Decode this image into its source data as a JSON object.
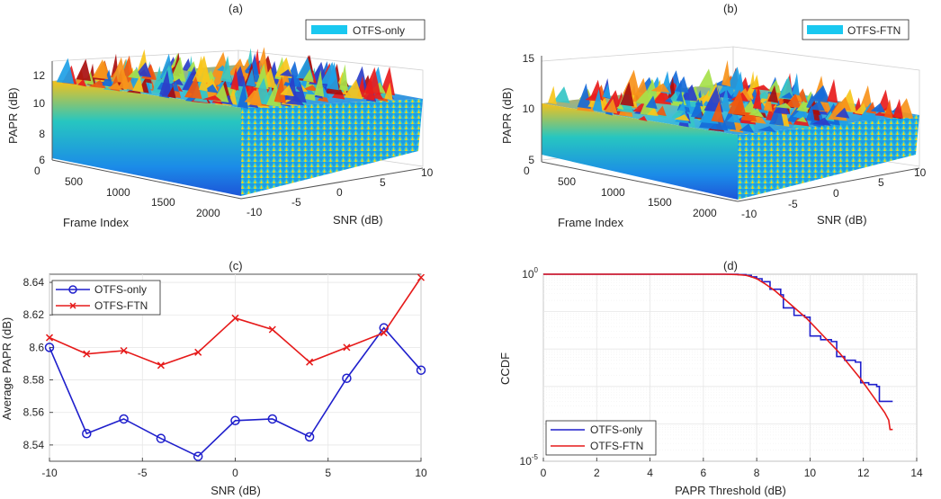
{
  "chart_data": [
    {
      "id": "a",
      "type": "surface3d",
      "title": "(a)",
      "xlabel": "Frame Index",
      "ylabel": "SNR (dB)",
      "zlabel": "PAPR (dB)",
      "x_ticks": [
        "0",
        "500",
        "1000",
        "1500",
        "2000"
      ],
      "y_ticks": [
        "-10",
        "-5",
        "0",
        "5",
        "10"
      ],
      "z_ticks": [
        "6",
        "8",
        "10",
        "12"
      ],
      "xlim": [
        0,
        2100
      ],
      "ylim": [
        -10,
        10
      ],
      "zlim": [
        6,
        13
      ],
      "legend": [
        "OTFS-only"
      ],
      "legend_color": "#19c8f0"
    },
    {
      "id": "b",
      "type": "surface3d",
      "title": "(b)",
      "xlabel": "Frame Index",
      "ylabel": "SNR (dB)",
      "zlabel": "PAPR (dB)",
      "x_ticks": [
        "0",
        "500",
        "1000",
        "1500",
        "2000"
      ],
      "y_ticks": [
        "-10",
        "-5",
        "0",
        "5",
        "10"
      ],
      "z_ticks": [
        "5",
        "10",
        "15"
      ],
      "xlim": [
        0,
        2100
      ],
      "ylim": [
        -10,
        10
      ],
      "zlim": [
        5,
        15
      ],
      "legend": [
        "OTFS-FTN"
      ],
      "legend_color": "#19c8f0"
    },
    {
      "id": "c",
      "type": "line",
      "title": "(c)",
      "xlabel": "SNR (dB)",
      "ylabel": "Average PAPR (dB)",
      "xlim": [
        -10,
        10
      ],
      "ylim": [
        8.53,
        8.645
      ],
      "x_ticks": [
        -10,
        -5,
        0,
        5,
        10
      ],
      "x_tick_labels": [
        "-10",
        "-5",
        "0",
        "5",
        "10"
      ],
      "y_ticks": [
        8.54,
        8.56,
        8.58,
        8.6,
        8.62,
        8.64
      ],
      "y_tick_labels": [
        "8.54",
        "8.56",
        "8.58",
        "8.6",
        "8.62",
        "8.64"
      ],
      "x": [
        -10,
        -8,
        -6,
        -4,
        -2,
        0,
        2,
        4,
        6,
        8,
        10
      ],
      "series": [
        {
          "name": "OTFS-only",
          "color": "#1f1fcc",
          "marker": "circle",
          "values": [
            8.6,
            8.547,
            8.556,
            8.544,
            8.533,
            8.555,
            8.556,
            8.545,
            8.581,
            8.612,
            8.586
          ]
        },
        {
          "name": "OTFS-FTN",
          "color": "#e61a1a",
          "marker": "x",
          "values": [
            8.606,
            8.596,
            8.598,
            8.589,
            8.597,
            8.618,
            8.611,
            8.591,
            8.6,
            8.609,
            8.643
          ]
        }
      ],
      "legend_position": "top-left",
      "grid": true
    },
    {
      "id": "d",
      "type": "line",
      "title": "(d)",
      "xlabel": "PAPR Threshold (dB)",
      "ylabel": "CCDF",
      "xlim": [
        0,
        14
      ],
      "ylog_range": [
        -5,
        0
      ],
      "x_ticks": [
        0,
        2,
        4,
        6,
        8,
        10,
        12,
        14
      ],
      "x_tick_labels": [
        "0",
        "2",
        "4",
        "6",
        "8",
        "10",
        "12",
        "14"
      ],
      "y_tick_labels": [
        "10",
        "10"
      ],
      "y_tick_exponents": [
        "0",
        "-5"
      ],
      "series": [
        {
          "name": "OTFS-only",
          "color": "#1f1fcc",
          "x": [
            0,
            6.8,
            7.3,
            7.6,
            7.8,
            8.0,
            8.2,
            8.5,
            8.9,
            9.0,
            9.4,
            9.8,
            10.0,
            10.4,
            10.8,
            11.0,
            11.3,
            11.7,
            11.9,
            12.2,
            12.5,
            12.6,
            13.1
          ],
          "log10_ccdf": [
            0,
            0,
            -0.01,
            -0.03,
            -0.07,
            -0.12,
            -0.2,
            -0.4,
            -0.55,
            -0.9,
            -1.1,
            -1.15,
            -1.65,
            -1.75,
            -1.8,
            -2.2,
            -2.3,
            -2.35,
            -2.9,
            -2.95,
            -3.0,
            -3.4,
            -3.4
          ]
        },
        {
          "name": "OTFS-FTN",
          "color": "#e61a1a",
          "x": [
            0,
            6.8,
            7.3,
            7.6,
            7.8,
            8.0,
            8.3,
            8.7,
            9.1,
            9.5,
            9.9,
            10.3,
            10.7,
            11.1,
            11.5,
            11.9,
            12.2,
            12.5,
            12.8,
            12.95,
            13.0,
            13.1
          ],
          "log10_ccdf": [
            0,
            0,
            -0.01,
            -0.03,
            -0.07,
            -0.12,
            -0.25,
            -0.45,
            -0.7,
            -0.95,
            -1.2,
            -1.5,
            -1.8,
            -2.1,
            -2.45,
            -2.8,
            -3.1,
            -3.4,
            -3.7,
            -3.9,
            -4.15,
            -4.15
          ]
        }
      ],
      "legend_position": "bottom-left",
      "grid": true
    }
  ]
}
